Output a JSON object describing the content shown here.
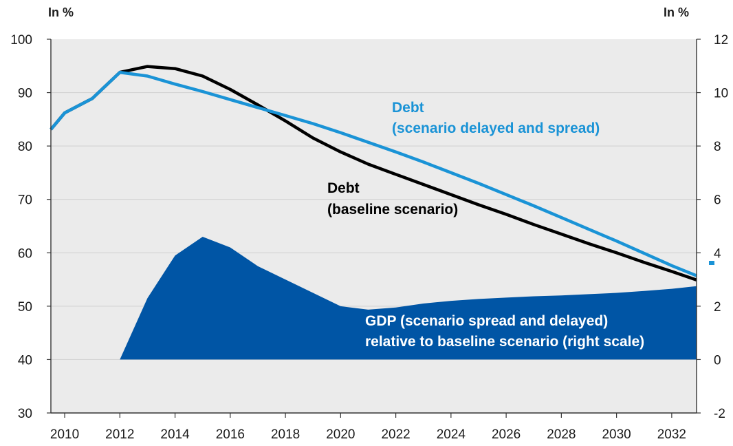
{
  "chart_data": {
    "type": "line",
    "left_unit_label": "In %",
    "right_unit_label": "In %",
    "x_ticks": [
      "2010",
      "2012",
      "2014",
      "2016",
      "2018",
      "2020",
      "2022",
      "2024",
      "2026",
      "2028",
      "2030",
      "2032"
    ],
    "xlim": [
      2009.4,
      2032.8
    ],
    "y_left": {
      "ticks": [
        "100",
        "90",
        "80",
        "70",
        "60",
        "50",
        "40",
        "30"
      ],
      "ylim": [
        30,
        100
      ]
    },
    "y_right": {
      "ticks": [
        "12",
        "10",
        "8",
        "6",
        "4",
        "2",
        "0",
        "-2"
      ],
      "ylim": [
        -2,
        12
      ]
    },
    "grid": true,
    "series": [
      {
        "id": "gdp",
        "axis": "right",
        "kind": "area",
        "color": "#0055a5",
        "x": [
          2011.9,
          2012.9,
          2013.9,
          2014.9,
          2015.9,
          2016.9,
          2017.9,
          2018.9,
          2019.9,
          2020.9,
          2021.9,
          2022.9,
          2023.9,
          2024.9,
          2025.9,
          2026.9,
          2027.9,
          2028.9,
          2029.9,
          2030.9,
          2031.9,
          2032.8
        ],
        "values": [
          0.0,
          2.3,
          3.9,
          4.6,
          4.2,
          3.5,
          3.0,
          2.5,
          2.0,
          1.87,
          1.95,
          2.1,
          2.2,
          2.27,
          2.32,
          2.37,
          2.4,
          2.45,
          2.5,
          2.57,
          2.65,
          2.75
        ]
      },
      {
        "id": "debt_baseline",
        "axis": "left",
        "kind": "line",
        "color": "#000000",
        "x": [
          2009.4,
          2009.9,
          2010.9,
          2011.9,
          2012.9,
          2013.9,
          2014.9,
          2015.9,
          2016.9,
          2017.9,
          2018.9,
          2019.9,
          2020.9,
          2021.9,
          2022.9,
          2023.9,
          2024.9,
          2025.9,
          2026.9,
          2027.9,
          2028.9,
          2029.9,
          2030.9,
          2031.9,
          2032.8
        ],
        "values": [
          83.1,
          86.2,
          88.9,
          93.8,
          94.9,
          94.5,
          93.1,
          90.6,
          87.7,
          84.7,
          81.5,
          78.9,
          76.6,
          74.7,
          72.8,
          70.9,
          69.0,
          67.2,
          65.3,
          63.5,
          61.7,
          60.0,
          58.2,
          56.5,
          54.9
        ]
      },
      {
        "id": "debt_delayed",
        "axis": "left",
        "kind": "line",
        "color": "#1a93d6",
        "x": [
          2009.4,
          2009.9,
          2010.9,
          2011.9,
          2012.9,
          2013.9,
          2014.9,
          2015.9,
          2016.9,
          2017.9,
          2018.9,
          2019.9,
          2020.9,
          2021.9,
          2022.9,
          2023.9,
          2024.9,
          2025.9,
          2026.9,
          2027.9,
          2028.9,
          2029.9,
          2030.9,
          2031.9,
          2032.8
        ],
        "values": [
          83.1,
          86.2,
          88.9,
          93.8,
          93.1,
          91.6,
          90.2,
          88.7,
          87.2,
          85.7,
          84.2,
          82.5,
          80.7,
          78.9,
          77.0,
          75.0,
          73.0,
          70.9,
          68.8,
          66.6,
          64.4,
          62.2,
          59.9,
          57.6,
          55.7
        ]
      }
    ],
    "annotations": {
      "debt_delayed": {
        "line1": "Debt",
        "line2": "(scenario delayed and spread)"
      },
      "debt_baseline": {
        "line1": "Debt",
        "line2": "(baseline scenario)"
      },
      "gdp": {
        "line1": "GDP (scenario spread and delayed)",
        "line2": "relative to baseline scenario (right scale)"
      }
    }
  }
}
